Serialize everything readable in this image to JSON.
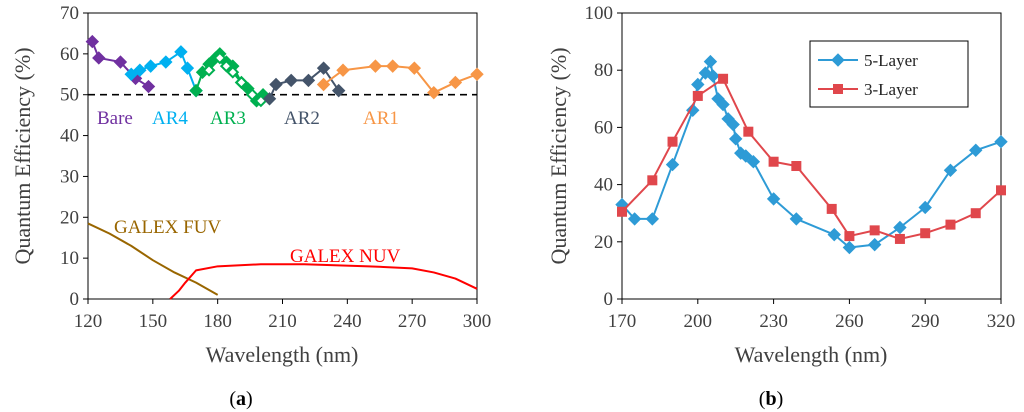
{
  "chart_data": [
    {
      "type": "line",
      "panel": "(a)",
      "caption_open": "(",
      "caption_letter": "a",
      "caption_close": ")",
      "xlabel": "Wavelength (nm)",
      "ylabel": "Quantum Efficiency (%)",
      "xlim": [
        120,
        300
      ],
      "ylim": [
        0,
        70
      ],
      "xticks": [
        120,
        150,
        180,
        210,
        240,
        270,
        300
      ],
      "yticks": [
        0,
        10,
        20,
        30,
        40,
        50,
        60,
        70
      ],
      "reference_line": {
        "y": 50,
        "style": "dashed",
        "color": "#000000"
      },
      "series": [
        {
          "name": "Bare",
          "color": "#7030A0",
          "marker": "diamond",
          "x": [
            122,
            125,
            135,
            142,
            148
          ],
          "y": [
            63,
            59,
            58,
            54,
            52
          ]
        },
        {
          "name": "AR4",
          "color": "#00B0F0",
          "marker": "diamond",
          "x": [
            140,
            144,
            149,
            156,
            163,
            166,
            170
          ],
          "y": [
            55,
            56,
            57,
            58,
            60.5,
            56.5,
            51
          ]
        },
        {
          "name": "AR3",
          "color": "#00B050",
          "marker": "diamond",
          "x": [
            170,
            173,
            176,
            179,
            181,
            184,
            187,
            191,
            194,
            198,
            201
          ],
          "y": [
            51,
            55.5,
            57.5,
            59,
            60,
            58,
            57,
            53,
            51.5,
            48.5,
            50
          ]
        },
        {
          "name": "AR3",
          "color": "#00B050",
          "marker": "diamond-open",
          "x": [
            176,
            181,
            184,
            187,
            191,
            196,
            200,
            204
          ],
          "y": [
            56,
            59,
            57,
            55.5,
            53,
            50,
            48.5,
            49
          ]
        },
        {
          "name": "AR2",
          "color": "#44546A",
          "marker": "diamond",
          "x": [
            204,
            207,
            214,
            222,
            229,
            236
          ],
          "y": [
            49,
            52.5,
            53.5,
            53.5,
            56.5,
            51
          ]
        },
        {
          "name": "AR1",
          "color": "#F79646",
          "marker": "diamond",
          "x": [
            229,
            238,
            253,
            261,
            271,
            280,
            290,
            300
          ],
          "y": [
            52.5,
            56,
            57,
            57,
            56.5,
            50.5,
            53,
            55
          ]
        },
        {
          "name": "GALEX FUV",
          "color": "#996600",
          "marker": "none",
          "x": [
            120,
            130,
            140,
            150,
            160,
            170,
            180
          ],
          "y": [
            18.5,
            16,
            13,
            9.5,
            6.5,
            4,
            1
          ]
        },
        {
          "name": "GALEX NUV",
          "color": "#FF0000",
          "marker": "none",
          "x": [
            158,
            162,
            165,
            170,
            180,
            200,
            220,
            250,
            270,
            280,
            290,
            300
          ],
          "y": [
            0,
            2,
            4,
            7,
            8,
            8.5,
            8.5,
            8,
            7.5,
            6.5,
            5,
            2.5
          ]
        }
      ],
      "annotations": [
        {
          "text": "Bare",
          "color": "#7030A0"
        },
        {
          "text": "AR4",
          "color": "#00B0F0"
        },
        {
          "text": "AR3",
          "color": "#00B050"
        },
        {
          "text": "AR2",
          "color": "#44546A"
        },
        {
          "text": "AR1",
          "color": "#F79646"
        },
        {
          "text": "GALEX FUV",
          "color": "#996600"
        },
        {
          "text": "GALEX NUV",
          "color": "#FF0000"
        }
      ]
    },
    {
      "type": "line",
      "panel": "(b)",
      "caption_open": "(",
      "caption_letter": "b",
      "caption_close": ")",
      "xlabel": "Wavelength (nm)",
      "ylabel": "Quantum Efficiency (%)",
      "xlim": [
        170,
        320
      ],
      "ylim": [
        0,
        100
      ],
      "xticks": [
        170,
        200,
        230,
        260,
        290,
        320
      ],
      "yticks": [
        0,
        20,
        40,
        60,
        80,
        100
      ],
      "legend_position": "top-right",
      "series": [
        {
          "name": "5-Layer",
          "color": "#2E9BD6",
          "marker": "diamond",
          "x": [
            170,
            175,
            182,
            190,
            198,
            200,
            203,
            205,
            206,
            208,
            210,
            212,
            214,
            215,
            217,
            219,
            222,
            230,
            239,
            254,
            260,
            270,
            280,
            290,
            300,
            310,
            320
          ],
          "y": [
            33,
            28,
            28,
            47,
            66,
            75,
            79,
            83,
            78,
            70,
            68,
            63,
            61,
            56,
            51,
            50,
            48,
            35,
            28,
            22.5,
            18,
            19,
            25,
            32,
            45,
            52,
            55
          ]
        },
        {
          "name": "3-Layer",
          "color": "#E0474C",
          "marker": "square",
          "x": [
            170,
            182,
            190,
            200,
            210,
            220,
            230,
            239,
            253,
            260,
            270,
            280,
            290,
            300,
            310,
            320
          ],
          "y": [
            30.5,
            41.5,
            55,
            71,
            77,
            58.5,
            48,
            46.5,
            31.5,
            22,
            24,
            21,
            23,
            26,
            30,
            38
          ]
        }
      ]
    }
  ]
}
